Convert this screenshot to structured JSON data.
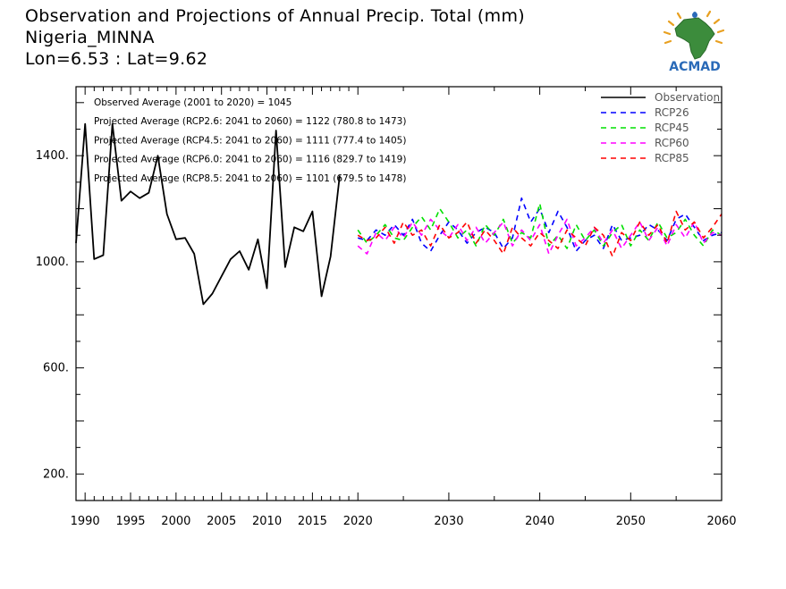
{
  "header": {
    "line1": "Observation and Projections of Annual Precip. Total (mm)",
    "line2": "Nigeria_MINNA",
    "line3": "Lon=6.53 : Lat=9.62"
  },
  "logo": {
    "text": "ACMAD",
    "icon": "africa-map-logo"
  },
  "colors": {
    "observation": "#000000",
    "rcp26": "#0000ff",
    "rcp45": "#00e000",
    "rcp60": "#ff00ff",
    "rcp85": "#ff0000"
  },
  "chart_data": {
    "type": "line",
    "xlim": [
      1989,
      2060
    ],
    "ylim": [
      100,
      1660
    ],
    "y_ticks": [
      "200.",
      "600.",
      "1000.",
      "1400."
    ],
    "x_tick_labels_early": [
      "1990",
      "1995",
      "2000",
      "2005",
      "2010",
      "2015",
      "2020"
    ],
    "x_tick_labels_late": [
      "2030",
      "2040",
      "2050",
      "2060"
    ],
    "annotations": [
      "Observed Average (2001 to 2020) = 1045",
      "Projected Average (RCP2.6: 2041 to 2060) = 1122 (780.8 to 1473)",
      "Projected Average (RCP4.5: 2041 to 2060) = 1111 (777.4 to 1405)",
      "Projected Average (RCP6.0: 2041 to 2060) = 1116 (829.7 to 1419)",
      "Projected Average (RCP8.5: 2041 to 2060) = 1101 (679.5 to 1478)"
    ],
    "series": [
      {
        "name": "Observation",
        "style": "solid",
        "x": [
          1989,
          1990,
          1991,
          1992,
          1993,
          1994,
          1995,
          1996,
          1997,
          1998,
          1999,
          2000,
          2001,
          2002,
          2003,
          2004,
          2005,
          2006,
          2007,
          2008,
          2009,
          2010,
          2011,
          2012,
          2013,
          2014,
          2015,
          2016,
          2017,
          2018,
          2019,
          2020
        ],
        "values": [
          1070,
          1520,
          1010,
          1025,
          1520,
          1230,
          1265,
          1240,
          1260,
          1400,
          1180,
          1085,
          1090,
          1030,
          840,
          880,
          945,
          1010,
          1040,
          970,
          1085,
          900,
          1495,
          980,
          1130,
          1115,
          1190,
          870,
          1020,
          1325,
          null,
          null
        ]
      },
      {
        "name": "RCP26",
        "style": "dashed",
        "x": [
          2020,
          2021,
          2022,
          2023,
          2024,
          2025,
          2026,
          2027,
          2028,
          2029,
          2030,
          2031,
          2032,
          2033,
          2034,
          2035,
          2036,
          2037,
          2038,
          2039,
          2040,
          2041,
          2042,
          2043,
          2044,
          2045,
          2046,
          2047,
          2048,
          2049,
          2050,
          2051,
          2052,
          2053,
          2054,
          2055,
          2056,
          2057,
          2058,
          2059,
          2060
        ],
        "values": [
          1090,
          1080,
          1120,
          1100,
          1140,
          1100,
          1160,
          1070,
          1040,
          1100,
          1150,
          1120,
          1070,
          1110,
          1130,
          1110,
          1050,
          1090,
          1240,
          1150,
          1200,
          1110,
          1190,
          1130,
          1040,
          1080,
          1100,
          1050,
          1140,
          1080,
          1090,
          1100,
          1140,
          1120,
          1080,
          1160,
          1180,
          1130,
          1080,
          1100,
          1110
        ]
      },
      {
        "name": "RCP45",
        "style": "dashed",
        "x": [
          2020,
          2021,
          2022,
          2023,
          2024,
          2025,
          2026,
          2027,
          2028,
          2029,
          2030,
          2031,
          2032,
          2033,
          2034,
          2035,
          2036,
          2037,
          2038,
          2039,
          2040,
          2041,
          2042,
          2043,
          2044,
          2045,
          2046,
          2047,
          2048,
          2049,
          2050,
          2051,
          2052,
          2053,
          2054,
          2055,
          2056,
          2057,
          2058,
          2059,
          2060
        ],
        "values": [
          1120,
          1070,
          1100,
          1140,
          1090,
          1080,
          1130,
          1170,
          1120,
          1200,
          1150,
          1090,
          1120,
          1060,
          1140,
          1100,
          1160,
          1070,
          1110,
          1090,
          1220,
          1060,
          1100,
          1050,
          1140,
          1080,
          1120,
          1060,
          1110,
          1140,
          1060,
          1120,
          1080,
          1150,
          1090,
          1110,
          1160,
          1100,
          1060,
          1120,
          1100
        ]
      },
      {
        "name": "RCP60",
        "style": "dashed",
        "x": [
          2020,
          2021,
          2022,
          2023,
          2024,
          2025,
          2026,
          2027,
          2028,
          2029,
          2030,
          2031,
          2032,
          2033,
          2034,
          2035,
          2036,
          2037,
          2038,
          2039,
          2040,
          2041,
          2042,
          2043,
          2044,
          2045,
          2046,
          2047,
          2048,
          2049,
          2050,
          2051,
          2052,
          2053,
          2054,
          2055,
          2056,
          2057,
          2058,
          2059,
          2060
        ],
        "values": [
          1060,
          1030,
          1110,
          1080,
          1130,
          1090,
          1150,
          1100,
          1160,
          1120,
          1090,
          1140,
          1080,
          1130,
          1070,
          1110,
          1150,
          1060,
          1120,
          1080,
          1140,
          1030,
          1100,
          1160,
          1060,
          1090,
          1130,
          1070,
          1120,
          1050,
          1100,
          1150,
          1080,
          1130,
          1060,
          1140,
          1090,
          1150,
          1070,
          1110,
          1100
        ]
      },
      {
        "name": "RCP85",
        "style": "dashed",
        "x": [
          2020,
          2021,
          2022,
          2023,
          2024,
          2025,
          2026,
          2027,
          2028,
          2029,
          2030,
          2031,
          2032,
          2033,
          2034,
          2035,
          2036,
          2037,
          2038,
          2039,
          2040,
          2041,
          2042,
          2043,
          2044,
          2045,
          2046,
          2047,
          2048,
          2049,
          2050,
          2051,
          2052,
          2053,
          2054,
          2055,
          2056,
          2057,
          2058,
          2059,
          2060
        ],
        "values": [
          1100,
          1080,
          1090,
          1130,
          1070,
          1150,
          1100,
          1120,
          1060,
          1140,
          1090,
          1110,
          1150,
          1070,
          1120,
          1080,
          1030,
          1130,
          1090,
          1060,
          1110,
          1080,
          1050,
          1120,
          1090,
          1060,
          1130,
          1100,
          1020,
          1110,
          1080,
          1150,
          1100,
          1140,
          1070,
          1190,
          1120,
          1150,
          1090,
          1130,
          1180
        ]
      }
    ],
    "legend": {
      "position": "top-right"
    }
  }
}
